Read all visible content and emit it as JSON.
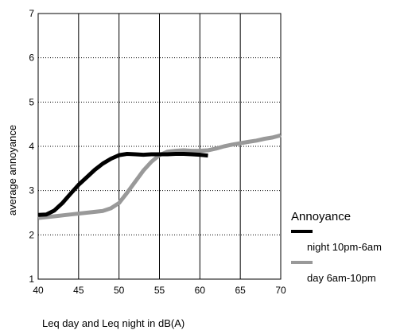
{
  "chart_data": {
    "type": "line",
    "title": "",
    "xlabel": "Leq day and Leq night in dB(A)",
    "ylabel": "average annoyance",
    "xlim": [
      40,
      70
    ],
    "ylim": [
      1,
      7
    ],
    "xticks": [
      40,
      45,
      50,
      55,
      60,
      65,
      70
    ],
    "yticks": [
      1,
      2,
      3,
      4,
      5,
      6,
      7
    ],
    "grid": true,
    "legend_title": "Annoyance",
    "legend_position": "right",
    "series": [
      {
        "name": "night 10pm-6am",
        "color": "#000000",
        "x": [
          40,
          41,
          42,
          43,
          44,
          45,
          46,
          47,
          48,
          49,
          50,
          51,
          52,
          53,
          54,
          55,
          56,
          57,
          58,
          59,
          60,
          61
        ],
        "y": [
          2.45,
          2.46,
          2.55,
          2.72,
          2.93,
          3.13,
          3.3,
          3.47,
          3.61,
          3.72,
          3.8,
          3.83,
          3.82,
          3.81,
          3.82,
          3.82,
          3.82,
          3.83,
          3.83,
          3.82,
          3.81,
          3.79
        ]
      },
      {
        "name": "day 6am-10pm",
        "color": "#999999",
        "x": [
          40,
          42,
          44,
          46,
          48,
          49,
          50,
          51,
          52,
          53,
          54,
          55,
          56,
          57,
          58,
          59,
          60,
          61,
          62,
          63,
          64,
          65,
          66,
          67,
          68,
          69,
          70
        ],
        "y": [
          2.38,
          2.42,
          2.46,
          2.5,
          2.54,
          2.6,
          2.72,
          2.95,
          3.2,
          3.45,
          3.65,
          3.8,
          3.88,
          3.9,
          3.91,
          3.9,
          3.9,
          3.91,
          3.95,
          4.0,
          4.04,
          4.07,
          4.1,
          4.13,
          4.17,
          4.2,
          4.25
        ]
      }
    ]
  }
}
